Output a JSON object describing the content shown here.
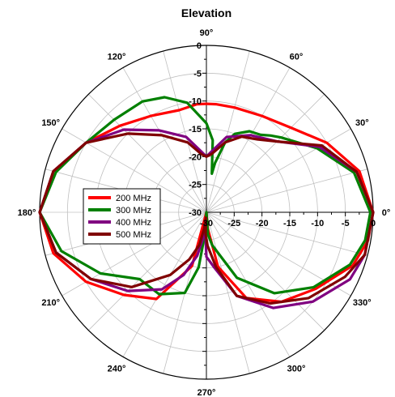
{
  "chart_data": {
    "type": "polar-line",
    "title": "Elevation",
    "angle_ticks": [
      "0°",
      "30°",
      "60°",
      "90°",
      "120°",
      "150°",
      "180°",
      "210°",
      "240°",
      "270°",
      "300°",
      "330°"
    ],
    "angle_tick_values": [
      0,
      30,
      60,
      90,
      120,
      150,
      180,
      210,
      240,
      270,
      300,
      330
    ],
    "radial_range": [
      -30,
      0
    ],
    "radial_ticks_top": [
      "0",
      "-5",
      "-10",
      "-15",
      "-20",
      "-25",
      "-30"
    ],
    "radial_ticks_right": [
      "-30",
      "-25",
      "-20",
      "-15",
      "-10",
      "-5",
      "0"
    ],
    "radial_tick_values": [
      0,
      -5,
      -10,
      -15,
      -20,
      -25,
      -30
    ],
    "angle_grid_step": 15,
    "legend_position": "left",
    "series": [
      {
        "name": "200 MHz",
        "color": "#ff0000",
        "points": [
          [
            0,
            0
          ],
          [
            15,
            -1.5
          ],
          [
            30,
            -5
          ],
          [
            45,
            -8.5
          ],
          [
            60,
            -10
          ],
          [
            75,
            -10.5
          ],
          [
            85,
            -10.5
          ],
          [
            90,
            -10.5
          ],
          [
            95,
            -10.5
          ],
          [
            105,
            -11
          ],
          [
            120,
            -10
          ],
          [
            135,
            -8
          ],
          [
            150,
            -5
          ],
          [
            165,
            -1.5
          ],
          [
            180,
            0
          ],
          [
            195,
            -1.5
          ],
          [
            210,
            -5
          ],
          [
            225,
            -9
          ],
          [
            240,
            -12
          ],
          [
            255,
            -20
          ],
          [
            262,
            -30
          ],
          [
            270,
            -30
          ],
          [
            275,
            -27
          ],
          [
            282,
            -20
          ],
          [
            295,
            -13
          ],
          [
            310,
            -9
          ],
          [
            325,
            -6
          ],
          [
            340,
            -2
          ],
          [
            350,
            -0.5
          ],
          [
            360,
            0
          ]
        ]
      },
      {
        "name": "300 MHz",
        "color": "#008000",
        "points": [
          [
            0,
            -0.5
          ],
          [
            15,
            -2.5
          ],
          [
            30,
            -7
          ],
          [
            45,
            -11
          ],
          [
            50,
            -12
          ],
          [
            55,
            -13
          ],
          [
            62,
            -13.5
          ],
          [
            70,
            -15
          ],
          [
            75,
            -17
          ],
          [
            80,
            -21
          ],
          [
            82,
            -23
          ],
          [
            85,
            -17
          ],
          [
            90,
            -14
          ],
          [
            100,
            -10
          ],
          [
            110,
            -8
          ],
          [
            120,
            -7
          ],
          [
            135,
            -6.5
          ],
          [
            150,
            -5
          ],
          [
            165,
            -2
          ],
          [
            180,
            0
          ],
          [
            195,
            -3
          ],
          [
            210,
            -8
          ],
          [
            225,
            -13
          ],
          [
            240,
            -13
          ],
          [
            255,
            -15
          ],
          [
            262,
            -20
          ],
          [
            266,
            -26
          ],
          [
            270,
            -30
          ],
          [
            274,
            -26
          ],
          [
            280,
            -24
          ],
          [
            295,
            -17
          ],
          [
            310,
            -11
          ],
          [
            325,
            -6.5
          ],
          [
            340,
            -2.5
          ],
          [
            350,
            -1
          ],
          [
            360,
            -0.5
          ]
        ]
      },
      {
        "name": "400 MHz",
        "color": "#800080",
        "points": [
          [
            0,
            0
          ],
          [
            15,
            -2
          ],
          [
            30,
            -6.5
          ],
          [
            45,
            -12
          ],
          [
            60,
            -14
          ],
          [
            75,
            -16
          ],
          [
            85,
            -19
          ],
          [
            90,
            -20
          ],
          [
            95,
            -19
          ],
          [
            105,
            -16
          ],
          [
            120,
            -13
          ],
          [
            135,
            -9
          ],
          [
            150,
            -5
          ],
          [
            165,
            -1.5
          ],
          [
            180,
            0
          ],
          [
            195,
            -2
          ],
          [
            210,
            -6
          ],
          [
            225,
            -10
          ],
          [
            240,
            -14
          ],
          [
            250,
            -18
          ],
          [
            258,
            -22
          ],
          [
            262,
            -25
          ],
          [
            266,
            -27
          ],
          [
            270,
            -22
          ],
          [
            278,
            -20
          ],
          [
            290,
            -14
          ],
          [
            305,
            -9
          ],
          [
            320,
            -5
          ],
          [
            335,
            -1.5
          ],
          [
            345,
            -0.5
          ],
          [
            360,
            0
          ]
        ]
      },
      {
        "name": "500 MHz",
        "color": "#800000",
        "points": [
          [
            0,
            0
          ],
          [
            15,
            -2
          ],
          [
            30,
            -6
          ],
          [
            45,
            -12
          ],
          [
            55,
            -14
          ],
          [
            65,
            -15
          ],
          [
            75,
            -17
          ],
          [
            85,
            -19.5
          ],
          [
            90,
            -20
          ],
          [
            95,
            -19.5
          ],
          [
            105,
            -17
          ],
          [
            120,
            -14
          ],
          [
            135,
            -10
          ],
          [
            150,
            -5
          ],
          [
            165,
            -1.5
          ],
          [
            180,
            0
          ],
          [
            195,
            -2
          ],
          [
            210,
            -6
          ],
          [
            225,
            -11
          ],
          [
            240,
            -17
          ],
          [
            250,
            -21
          ],
          [
            258,
            -24
          ],
          [
            262,
            -27
          ],
          [
            266,
            -29
          ],
          [
            268,
            -26
          ],
          [
            272,
            -24
          ],
          [
            280,
            -20
          ],
          [
            290,
            -14
          ],
          [
            305,
            -10
          ],
          [
            320,
            -6
          ],
          [
            335,
            -2.5
          ],
          [
            345,
            -0.5
          ],
          [
            360,
            0
          ]
        ]
      }
    ]
  }
}
